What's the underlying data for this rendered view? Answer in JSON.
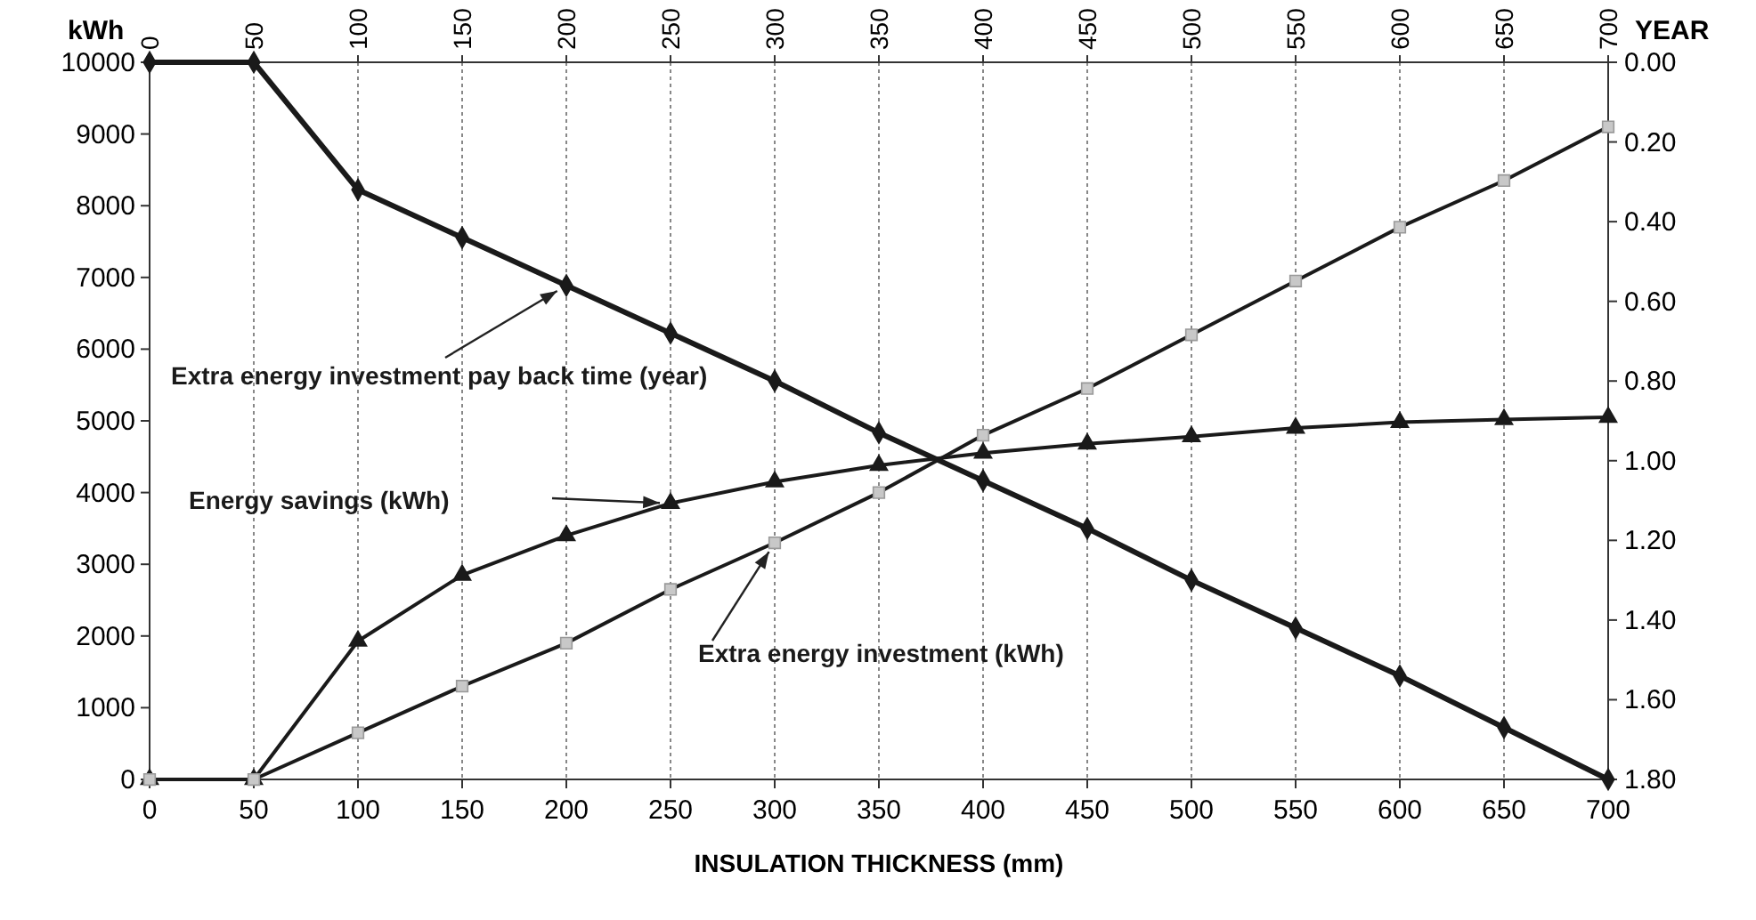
{
  "chart_data": {
    "type": "line",
    "xlabel": "INSULATION THICKNESS (mm)",
    "ylabel": "kWh",
    "y2label": "YEAR",
    "x": [
      0,
      50,
      100,
      150,
      200,
      250,
      300,
      350,
      400,
      450,
      500,
      550,
      600,
      650,
      700
    ],
    "series": [
      {
        "name": "Extra energy investment pay back time (year)",
        "color": "#1a1a1a",
        "marker": "diamond",
        "axis": "y2",
        "values": [
          0,
          0,
          0.32,
          0.44,
          0.56,
          0.68,
          0.8,
          0.93,
          1.05,
          1.17,
          1.3,
          1.42,
          1.54,
          1.67,
          1.8
        ]
      },
      {
        "name": "Energy savings (kWh)",
        "color": "#1a1a1a",
        "marker": "triangle",
        "values": [
          0,
          0,
          1930,
          2850,
          3400,
          3850,
          4150,
          4380,
          4550,
          4680,
          4780,
          4900,
          4980,
          5020,
          5050
        ]
      },
      {
        "name": "Extra energy investment (kWh)",
        "color": "#1a1a1a",
        "marker": "square",
        "values": [
          0,
          0,
          650,
          1300,
          1900,
          2650,
          3300,
          4000,
          4800,
          5450,
          6200,
          6950,
          7700,
          8350,
          9100
        ]
      }
    ],
    "xlim": [
      0,
      700
    ],
    "xticks": [
      0,
      50,
      100,
      150,
      200,
      250,
      300,
      350,
      400,
      450,
      500,
      550,
      600,
      650,
      700
    ],
    "x2lim": [
      0,
      700
    ],
    "x2ticks": [
      0,
      50,
      100,
      150,
      200,
      250,
      300,
      350,
      400,
      450,
      500,
      550,
      600,
      650,
      700
    ],
    "ylim": [
      0,
      10000
    ],
    "yticks": [
      0,
      1000,
      2000,
      3000,
      4000,
      5000,
      6000,
      7000,
      8000,
      9000,
      10000
    ],
    "y2lim": [
      1.8,
      0
    ],
    "y2ticks": [
      {
        "value": 0,
        "label": "0.00"
      },
      {
        "value": 0.2,
        "label": "0.20"
      },
      {
        "value": 0.4,
        "label": "0.40"
      },
      {
        "value": 0.6,
        "label": "0.60"
      },
      {
        "value": 0.8,
        "label": "0.80"
      },
      {
        "value": 1,
        "label": "1.00"
      },
      {
        "value": 1.2,
        "label": "1.20"
      },
      {
        "value": 1.4,
        "label": "1.40"
      },
      {
        "value": 1.6,
        "label": "1.60"
      },
      {
        "value": 1.8,
        "label": "1.80"
      }
    ],
    "grid": "x"
  }
}
